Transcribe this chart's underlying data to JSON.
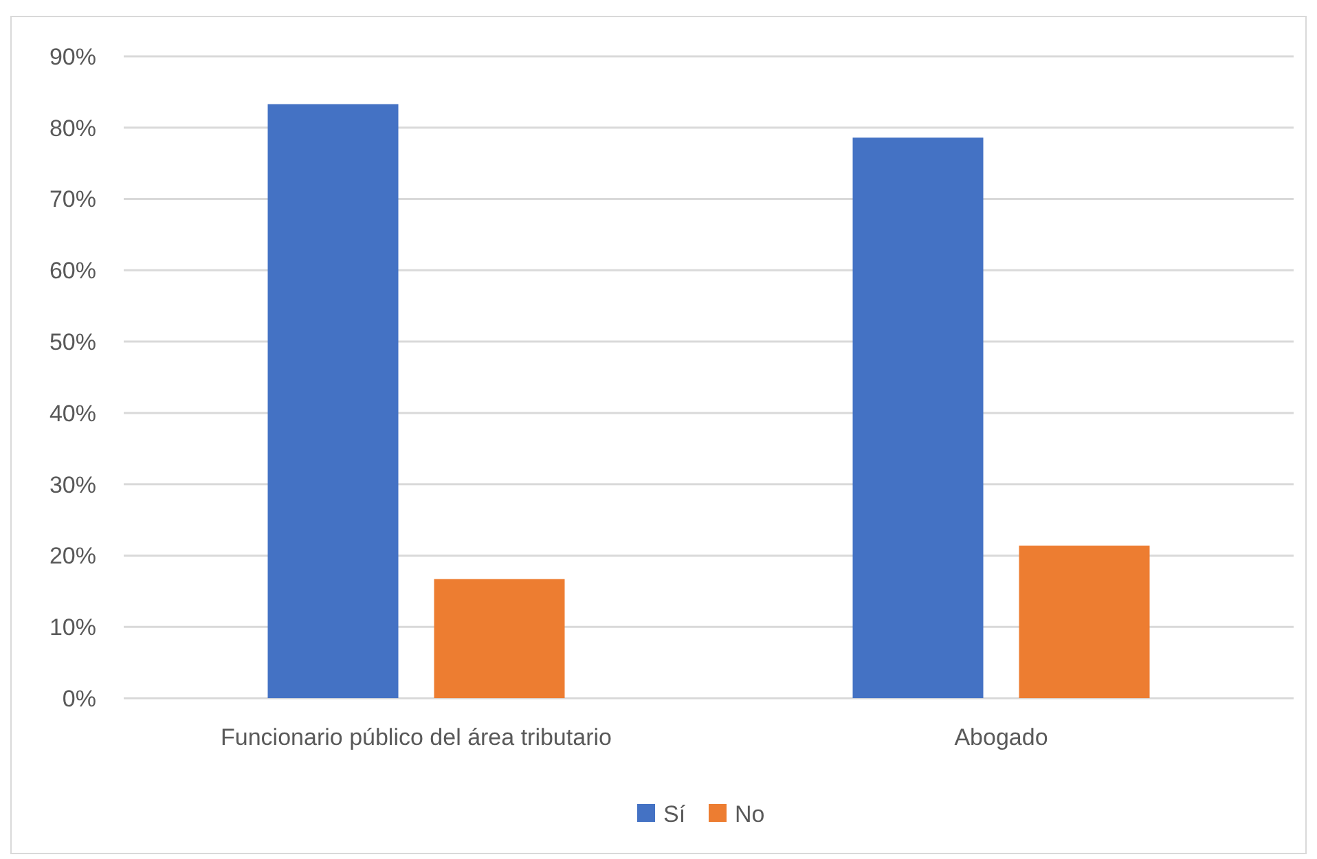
{
  "chart_data": {
    "type": "bar",
    "categories": [
      "Funcionario público del área tributario",
      "Abogado"
    ],
    "series": [
      {
        "name": "Sí",
        "color": "#4472c4",
        "values": [
          83.3,
          78.6
        ]
      },
      {
        "name": "No",
        "color": "#ed7d31",
        "values": [
          16.7,
          21.4
        ]
      }
    ],
    "ylim": [
      0,
      90
    ],
    "yticks": [
      {
        "value": 0,
        "label": "0%"
      },
      {
        "value": 10,
        "label": "10%"
      },
      {
        "value": 20,
        "label": "20%"
      },
      {
        "value": 30,
        "label": "30%"
      },
      {
        "value": 40,
        "label": "40%"
      },
      {
        "value": 50,
        "label": "50%"
      },
      {
        "value": 60,
        "label": "60%"
      },
      {
        "value": 70,
        "label": "70%"
      },
      {
        "value": 80,
        "label": "80%"
      },
      {
        "value": 90,
        "label": "90%"
      }
    ],
    "grid": "y",
    "legend": "bottom"
  }
}
